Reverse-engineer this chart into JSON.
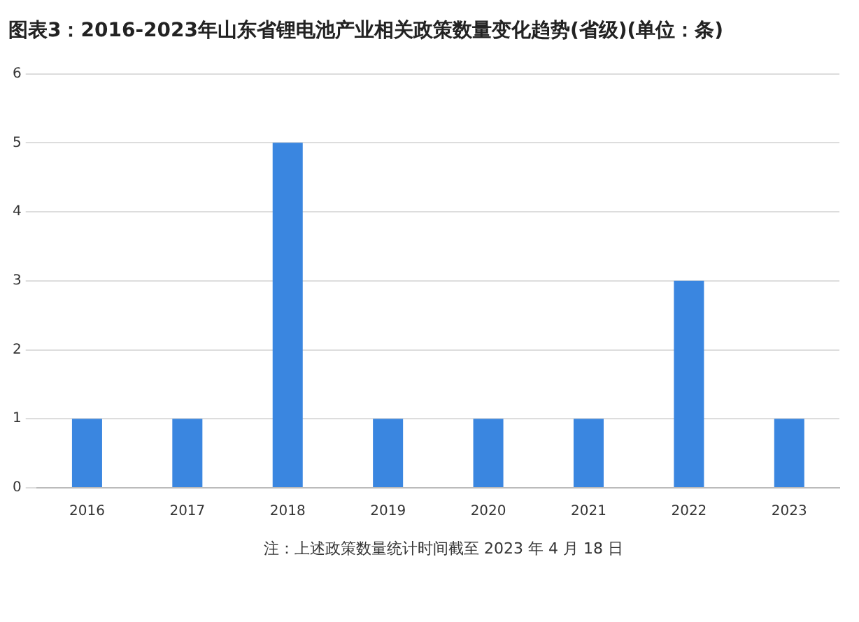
{
  "chart_data": {
    "type": "bar",
    "title": "图表3：2016-2023年山东省锂电池产业相关政策数量变化趋势(省级)(单位：条)",
    "categories": [
      "2016",
      "2017",
      "2018",
      "2019",
      "2020",
      "2021",
      "2022",
      "2023"
    ],
    "values": [
      1,
      1,
      5,
      1,
      1,
      1,
      3,
      1
    ],
    "color": "#3a86e0",
    "ylim": [
      0,
      6
    ],
    "yticks": [
      0,
      1,
      2,
      3,
      4,
      5,
      6
    ],
    "grid": "y",
    "legend": false,
    "annotations": [
      "注：上述政策数量统计时间截至 2023 年 4 月 18 日"
    ]
  }
}
